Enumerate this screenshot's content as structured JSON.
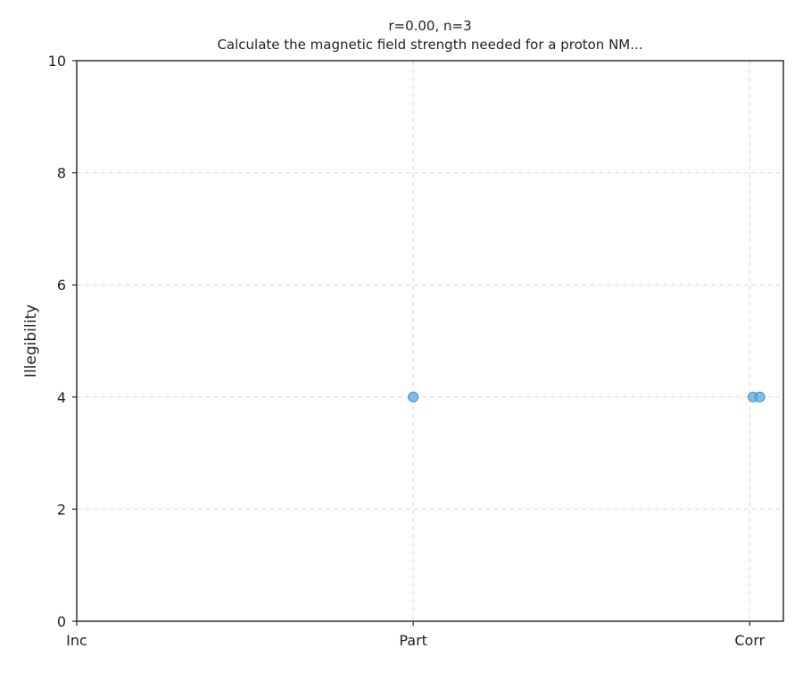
{
  "chart_data": {
    "type": "scatter",
    "title": "r=0.00, n=3",
    "subtitle": "Calculate the magnetic field strength needed for a proton NM...",
    "xlabel": "",
    "ylabel": "Illegibility",
    "x_categories": [
      "Inc",
      "Part",
      "Corr"
    ],
    "xlim": [
      0,
      2.1
    ],
    "ylim": [
      0,
      10
    ],
    "y_ticks": [
      0,
      2,
      4,
      6,
      8,
      10
    ],
    "grid": true,
    "points": [
      {
        "x": 1.0,
        "y": 4
      },
      {
        "x": 2.01,
        "y": 4
      },
      {
        "x": 2.03,
        "y": 4
      }
    ],
    "point_color": "#5DADE2"
  }
}
